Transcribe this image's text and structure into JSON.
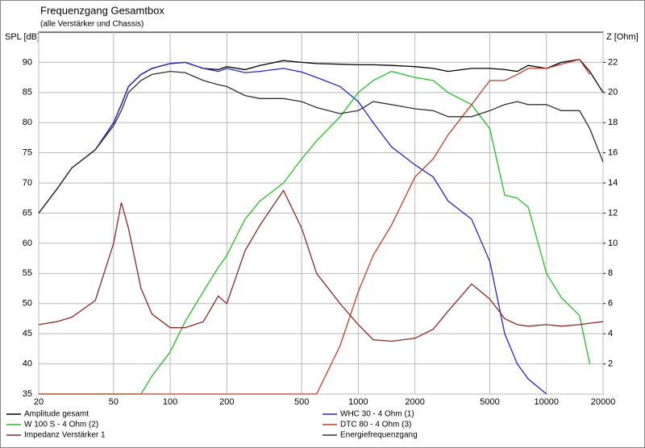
{
  "chart_data": {
    "type": "line",
    "title": "Frequenzgang Gesamtbox",
    "subtitle": "(alle Verstärker und Chassis)",
    "y_label": "SPL [dB]",
    "y2_label": "Z [Ohm]",
    "xlog": true,
    "grid": true,
    "x": [
      20,
      25,
      30,
      40,
      50,
      55,
      60,
      70,
      80,
      100,
      120,
      150,
      180,
      200,
      250,
      300,
      400,
      500,
      600,
      800,
      1000,
      1200,
      1500,
      2000,
      2500,
      3000,
      4000,
      5000,
      6000,
      7000,
      8000,
      10000,
      12000,
      15000,
      17000,
      20000
    ],
    "xlim": [
      20,
      20000
    ],
    "xticks": [
      20,
      50,
      100,
      200,
      500,
      1000,
      2000,
      5000,
      10000,
      20000
    ],
    "ylim": [
      35,
      95
    ],
    "yticks": [
      35,
      40,
      45,
      50,
      55,
      60,
      65,
      70,
      75,
      80,
      85,
      90
    ],
    "y2lim": [
      0,
      24
    ],
    "y2ticks": [
      2,
      4,
      6,
      8,
      10,
      12,
      14,
      16,
      18,
      20,
      22
    ],
    "series": [
      {
        "name": "Amplitude gesamt",
        "color": "#000000",
        "values": [
          65,
          69,
          72.5,
          75.5,
          80,
          83,
          86,
          88,
          89,
          89.8,
          90,
          89,
          88.8,
          89.3,
          88.8,
          89.5,
          90.3,
          90,
          89.8,
          89.7,
          89.6,
          89.6,
          89.5,
          89.3,
          89,
          88.5,
          89,
          89,
          88.8,
          88.5,
          89.5,
          89,
          90,
          90.5,
          88.5,
          85
        ]
      },
      {
        "name": "WHC 30 - 4 Ohm (1)",
        "color": "#2424c8",
        "values": [
          65,
          69,
          72.5,
          75.5,
          80,
          83,
          86,
          88,
          89,
          89.8,
          90,
          89,
          88.5,
          89,
          88.3,
          88.5,
          89,
          88.4,
          87.5,
          86,
          83.5,
          80,
          76,
          73,
          71,
          67,
          64,
          57,
          45,
          40,
          37.5,
          35,
          null,
          null,
          null,
          null
        ]
      },
      {
        "name": "W 100 S - 4 Ohm (2)",
        "color": "#22c022",
        "values": [
          35,
          35,
          35,
          35,
          35,
          35,
          35,
          35,
          38,
          42,
          47,
          52,
          56,
          58,
          64,
          67,
          70,
          74,
          77,
          81,
          85,
          87,
          88.5,
          87.5,
          87,
          85,
          83,
          79,
          68,
          67.5,
          66,
          55,
          51,
          48,
          40,
          null
        ]
      },
      {
        "name": "DTC 80 - 4 Ohm (3)",
        "color": "#c83a28",
        "values": [
          35,
          35,
          35,
          35,
          35,
          35,
          35,
          35,
          35,
          35,
          35,
          35,
          35,
          35,
          35,
          35,
          35,
          35,
          35,
          43,
          52,
          58,
          63,
          71,
          74,
          78,
          83,
          87,
          87,
          88,
          89,
          89,
          89.7,
          90.5,
          88,
          null
        ]
      },
      {
        "name": "Impedanz Verstärker 1",
        "color": "#8a2a22",
        "axis": "y2",
        "values": [
          4.6,
          4.8,
          5.1,
          6.2,
          10,
          12.7,
          11,
          7,
          5.3,
          4.4,
          4.4,
          4.8,
          6.5,
          6,
          9.5,
          11.2,
          13.5,
          11,
          8,
          6,
          4.6,
          3.6,
          3.5,
          3.7,
          4.3,
          5.5,
          7.3,
          6.3,
          5,
          4.6,
          4.5,
          4.6,
          4.5,
          4.6,
          4.7,
          4.8
        ]
      },
      {
        "name": "Energiefrequenzgang",
        "color": "#303030",
        "values": [
          65,
          69,
          72.5,
          75.5,
          79.5,
          82,
          85,
          87,
          88,
          88.5,
          88.3,
          87,
          86.3,
          86,
          84.5,
          84,
          84,
          83.5,
          82.5,
          81.5,
          82,
          83.5,
          83,
          82.3,
          82,
          81,
          81,
          82,
          83,
          83.5,
          83,
          83,
          82,
          82,
          79,
          73.5
        ]
      }
    ]
  }
}
